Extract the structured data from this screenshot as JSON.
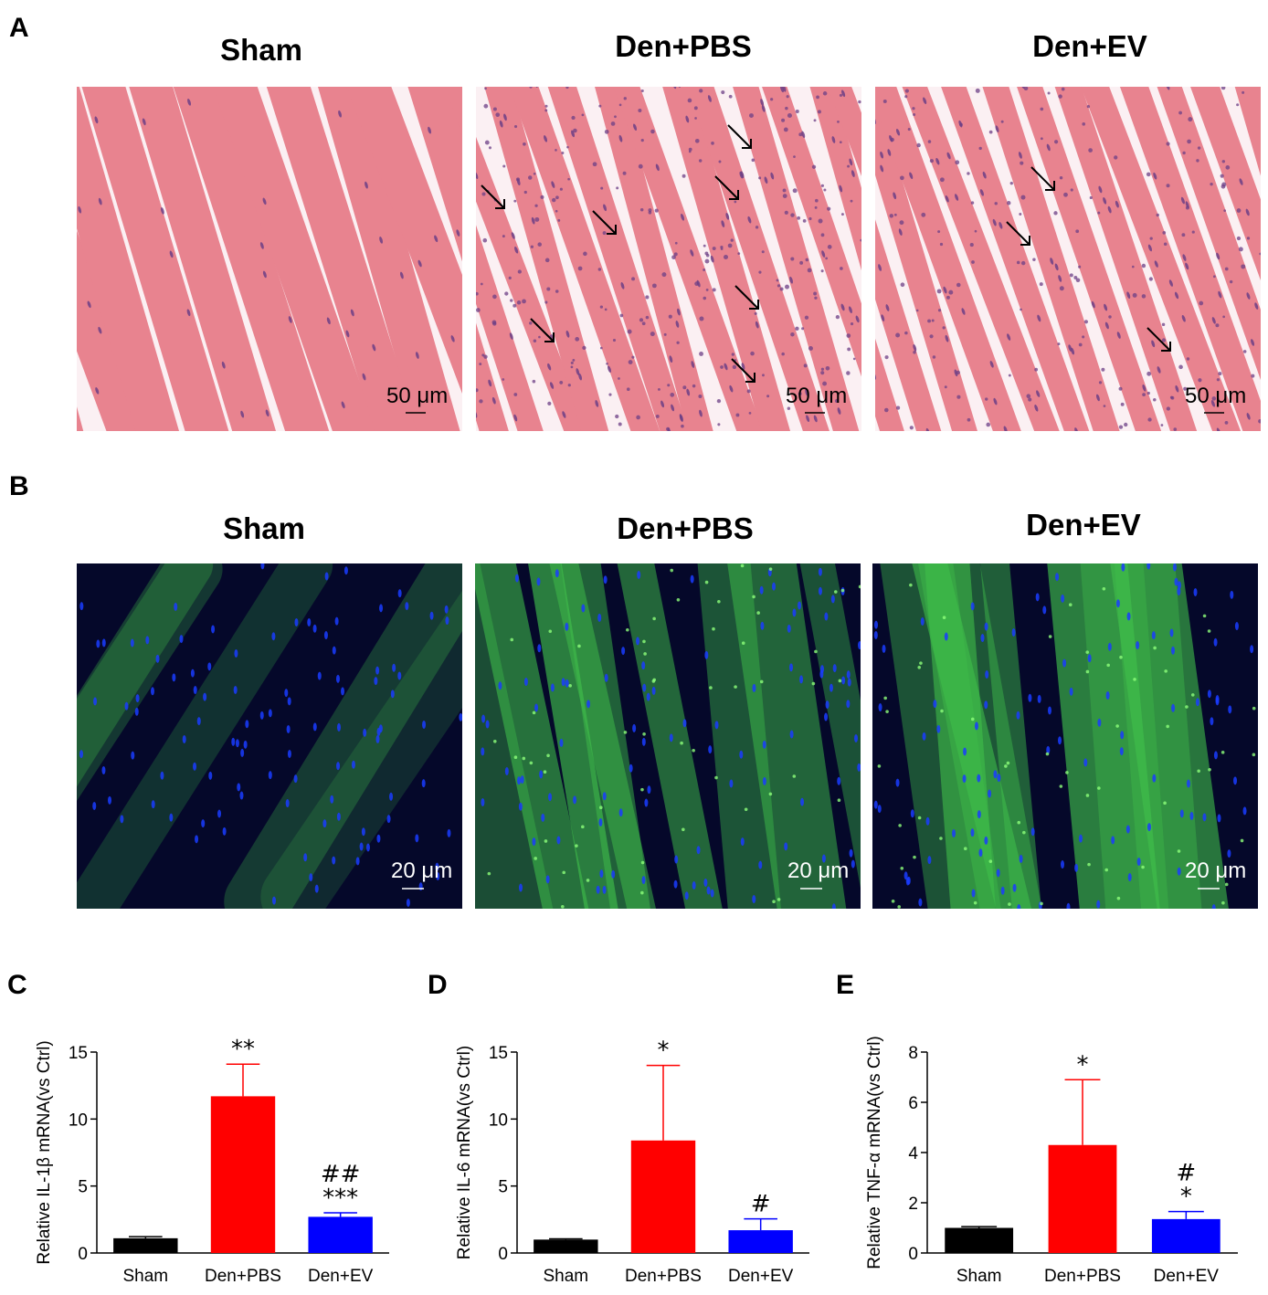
{
  "panel_a": {
    "letter": "A",
    "titles": [
      "Sham",
      "Den+PBS",
      "Den+EV"
    ],
    "scale_bar": "50 μm",
    "tissue_color": "#e8838f",
    "gap_color": "#fbf0f3",
    "nuclei_color": "#6c3f86",
    "arrow_icon": "arrow-down-right-icon"
  },
  "panel_b": {
    "letter": "B",
    "titles": [
      "Sham",
      "Den+PBS",
      "Den+EV"
    ],
    "scale_bar": "20 μm",
    "background_color": "#05082a",
    "fiber_color": "#3fbf4a",
    "nuclei_color": "#1a3cff"
  },
  "chart_data": [
    {
      "letter": "C",
      "type": "bar",
      "categories": [
        "Sham",
        "Den+PBS",
        "Den+EV"
      ],
      "values": [
        1.1,
        11.7,
        2.7
      ],
      "errors": [
        0.12,
        2.4,
        0.3
      ],
      "colors": [
        "#000000",
        "#ff0000",
        "#0000ff"
      ],
      "ylabel": "Relative IL-1β mRNA(vs Ctrl)",
      "ylim": [
        0,
        15
      ],
      "yticks": [
        0,
        5,
        10,
        15
      ],
      "significance": [
        [],
        [
          "**"
        ],
        [
          "##",
          "***"
        ]
      ]
    },
    {
      "letter": "D",
      "type": "bar",
      "categories": [
        "Sham",
        "Den+PBS",
        "Den+EV"
      ],
      "values": [
        1.0,
        8.4,
        1.7
      ],
      "errors": [
        0.06,
        5.6,
        0.85
      ],
      "colors": [
        "#000000",
        "#ff0000",
        "#0000ff"
      ],
      "ylabel": "Relative IL-6 mRNA(vs Ctrl)",
      "ylim": [
        0,
        15
      ],
      "yticks": [
        0,
        5,
        10,
        15
      ],
      "significance": [
        [],
        [
          "*"
        ],
        [
          "#"
        ]
      ]
    },
    {
      "letter": "E",
      "type": "bar",
      "categories": [
        "Sham",
        "Den+PBS",
        "Den+EV"
      ],
      "values": [
        1.0,
        4.3,
        1.35
      ],
      "errors": [
        0.05,
        2.6,
        0.3
      ],
      "colors": [
        "#000000",
        "#ff0000",
        "#0000ff"
      ],
      "ylabel": "Relative TNF-α mRNA(vs Ctrl)",
      "ylim": [
        0,
        8
      ],
      "yticks": [
        0,
        2,
        4,
        6,
        8
      ],
      "significance": [
        [],
        [
          "*"
        ],
        [
          "#",
          "*"
        ]
      ]
    }
  ]
}
